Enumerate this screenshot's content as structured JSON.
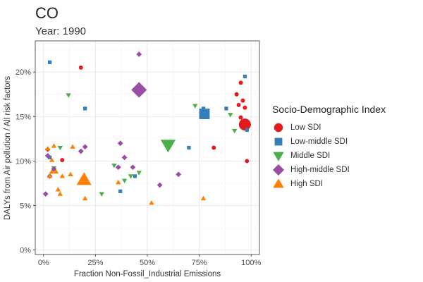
{
  "chart_data": {
    "type": "scatter",
    "title": "CO",
    "subtitle": "Year: 1990",
    "xlabel": "Fraction Non-Fossil_Industrial Emissions",
    "ylabel": "DALYs from Air pollution / All risk factors",
    "xlim": [
      -0.04,
      1.04
    ],
    "ylim": [
      -0.005,
      0.235
    ],
    "x_ticks": [
      0,
      0.25,
      0.5,
      0.75,
      1.0
    ],
    "x_tick_labels": [
      "0%",
      "25%",
      "50%",
      "75%",
      "100%"
    ],
    "y_ticks": [
      0,
      0.05,
      0.1,
      0.15,
      0.2
    ],
    "y_tick_labels": [
      "0%",
      "5%",
      "10%",
      "15%",
      "20%"
    ],
    "grid": true,
    "legend": {
      "title": "Socio-Demographic Index",
      "placement": "right"
    },
    "series": [
      {
        "name": "Low SDI",
        "color": "#e41a1c",
        "shape": "circle",
        "points": [
          [
            0.18,
            0.205,
            1
          ],
          [
            0.09,
            0.101,
            1
          ],
          [
            0.82,
            0.115,
            1
          ],
          [
            0.93,
            0.175,
            1
          ],
          [
            0.95,
            0.188,
            1
          ],
          [
            0.96,
            0.168,
            1
          ],
          [
            0.94,
            0.163,
            1
          ],
          [
            0.97,
            0.16,
            1
          ],
          [
            0.95,
            0.149,
            1
          ],
          [
            0.98,
            0.1,
            1
          ],
          [
            0.97,
            0.141,
            3
          ]
        ]
      },
      {
        "name": "Low-middle SDI",
        "color": "#377eb8",
        "shape": "square",
        "points": [
          [
            0.03,
            0.211,
            1
          ],
          [
            0.2,
            0.159,
            1
          ],
          [
            0.03,
            0.104,
            1
          ],
          [
            0.37,
            0.066,
            1
          ],
          [
            0.44,
            0.083,
            1
          ],
          [
            0.7,
            0.115,
            1
          ],
          [
            0.77,
            0.159,
            1
          ],
          [
            0.88,
            0.159,
            1
          ],
          [
            0.97,
            0.195,
            1
          ],
          [
            0.98,
            0.135,
            1
          ],
          [
            0.775,
            0.153,
            3
          ]
        ]
      },
      {
        "name": "Middle SDI",
        "color": "#4daf4a",
        "shape": "triangle-down",
        "points": [
          [
            0.12,
            0.174,
            1
          ],
          [
            0.08,
            0.115,
            1
          ],
          [
            0.05,
            0.092,
            1
          ],
          [
            0.28,
            0.063,
            1
          ],
          [
            0.34,
            0.095,
            1
          ],
          [
            0.39,
            0.078,
            1
          ],
          [
            0.42,
            0.083,
            1
          ],
          [
            0.46,
            0.087,
            1
          ],
          [
            0.73,
            0.162,
            1
          ],
          [
            0.9,
            0.152,
            1
          ],
          [
            0.92,
            0.134,
            1
          ],
          [
            0.6,
            0.118,
            3
          ]
        ]
      },
      {
        "name": "High-middle SDI",
        "color": "#984ea3",
        "shape": "diamond",
        "points": [
          [
            0.02,
            0.113,
            1
          ],
          [
            0.02,
            0.106,
            1
          ],
          [
            0.03,
            0.083,
            1
          ],
          [
            0.01,
            0.063,
            1
          ],
          [
            0.05,
            0.091,
            1
          ],
          [
            0.18,
            0.111,
            1
          ],
          [
            0.2,
            0.116,
            1
          ],
          [
            0.37,
            0.12,
            1
          ],
          [
            0.39,
            0.104,
            1
          ],
          [
            0.36,
            0.093,
            1
          ],
          [
            0.43,
            0.093,
            1
          ],
          [
            0.46,
            0.22,
            1
          ],
          [
            0.56,
            0.073,
            1
          ],
          [
            0.65,
            0.085,
            1
          ],
          [
            0.46,
            0.18,
            3
          ]
        ]
      },
      {
        "name": "High SDI",
        "color": "#ff7f00",
        "shape": "triangle-up",
        "points": [
          [
            0.05,
            0.117,
            1
          ],
          [
            0.02,
            0.114,
            1
          ],
          [
            0.04,
            0.101,
            1
          ],
          [
            0.04,
            0.088,
            1
          ],
          [
            0.06,
            0.088,
            1
          ],
          [
            0.03,
            0.083,
            1
          ],
          [
            0.07,
            0.068,
            1
          ],
          [
            0.08,
            0.063,
            1
          ],
          [
            0.09,
            0.083,
            1
          ],
          [
            0.14,
            0.116,
            1
          ],
          [
            0.13,
            0.085,
            1
          ],
          [
            0.36,
            0.076,
            1
          ],
          [
            0.52,
            0.053,
            1
          ],
          [
            0.77,
            0.058,
            1
          ],
          [
            0.2,
            0.058,
            1
          ],
          [
            0.195,
            0.079,
            3
          ]
        ]
      }
    ]
  }
}
